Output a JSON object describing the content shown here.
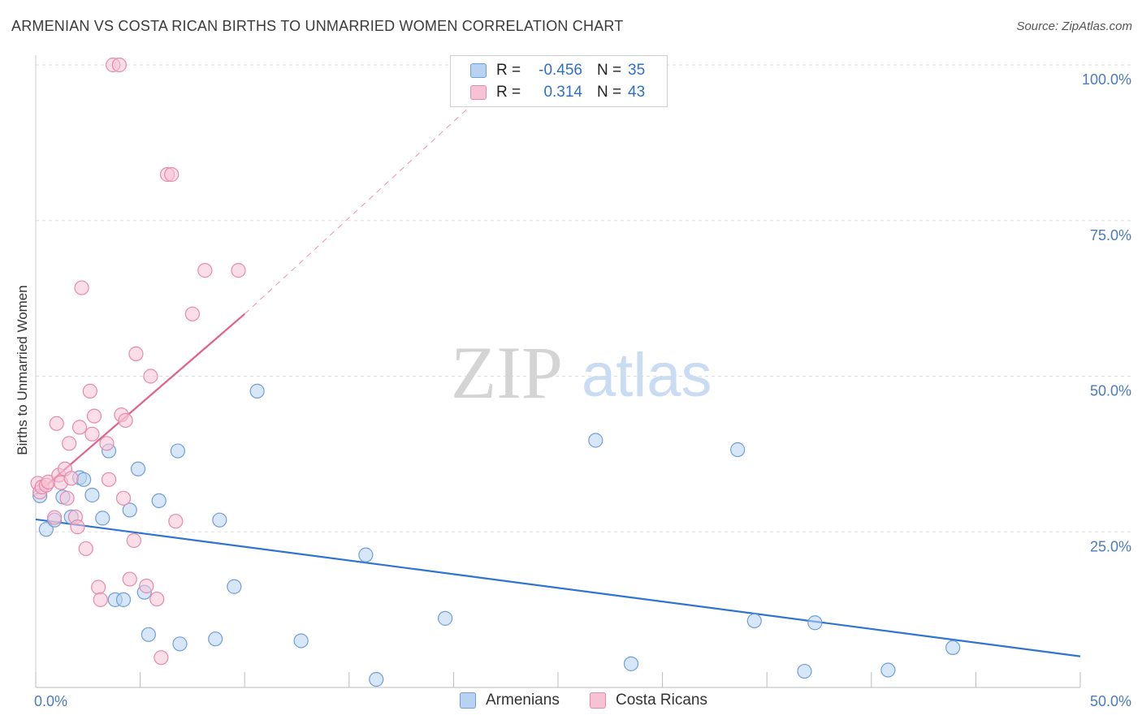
{
  "title": "ARMENIAN VS COSTA RICAN BIRTHS TO UNMARRIED WOMEN CORRELATION CHART",
  "source": "Source: ZipAtlas.com",
  "watermark": {
    "zip": "ZIP",
    "atlas": "atlas"
  },
  "colors": {
    "armenian_fill": "#b8d3f2",
    "armenian_stroke": "#6f9fd8",
    "armenian_line": "#2e74d0",
    "costa_fill": "#f7c3d4",
    "costa_stroke": "#e68aab",
    "costa_line": "#e2608e",
    "tick_text": "#4a7ac0",
    "grid": "#dddddd"
  },
  "legend": {
    "r_label": "R =",
    "n_label": "N =",
    "rows": [
      {
        "series": "Armenians",
        "r": "-0.456",
        "n": "35"
      },
      {
        "series": "Costa Ricans",
        "r": "0.314",
        "n": "43"
      }
    ]
  },
  "chart_data": {
    "type": "scatter",
    "title": "ARMENIAN VS COSTA RICAN BIRTHS TO UNMARRIED WOMEN CORRELATION CHART",
    "xlabel": "",
    "ylabel": "Births to Unmarried Women",
    "xlim": [
      0,
      50
    ],
    "ylim": [
      0,
      100
    ],
    "x_tick_labels": [
      "0.0%",
      "50.0%"
    ],
    "y_ticks": [
      25,
      50,
      75,
      100
    ],
    "y_tick_labels": [
      "25.0%",
      "50.0%",
      "75.0%",
      "100.0%"
    ],
    "grid": true,
    "legend_position": "top-center",
    "series": [
      {
        "name": "Armenians",
        "points": [
          [
            0.2,
            30.8
          ],
          [
            0.5,
            25.4
          ],
          [
            0.9,
            26.9
          ],
          [
            1.3,
            30.6
          ],
          [
            1.7,
            27.4
          ],
          [
            2.1,
            33.7
          ],
          [
            2.3,
            33.4
          ],
          [
            2.7,
            30.9
          ],
          [
            3.2,
            27.2
          ],
          [
            3.5,
            38.0
          ],
          [
            3.8,
            14.1
          ],
          [
            4.2,
            14.1
          ],
          [
            4.5,
            28.5
          ],
          [
            4.9,
            35.1
          ],
          [
            5.2,
            15.3
          ],
          [
            5.4,
            8.5
          ],
          [
            5.9,
            30.0
          ],
          [
            6.8,
            38.0
          ],
          [
            6.9,
            7.0
          ],
          [
            8.6,
            7.8
          ],
          [
            8.8,
            26.9
          ],
          [
            9.5,
            16.2
          ],
          [
            10.6,
            47.6
          ],
          [
            12.7,
            7.5
          ],
          [
            15.8,
            21.3
          ],
          [
            16.3,
            1.3
          ],
          [
            19.6,
            11.1
          ],
          [
            26.8,
            39.7
          ],
          [
            28.5,
            3.8
          ],
          [
            33.6,
            38.2
          ],
          [
            34.4,
            10.7
          ],
          [
            36.8,
            2.6
          ],
          [
            37.3,
            10.4
          ],
          [
            40.8,
            2.8
          ],
          [
            43.9,
            6.4
          ]
        ]
      },
      {
        "name": "Costa Ricans",
        "points": [
          [
            0.1,
            32.8
          ],
          [
            0.2,
            31.4
          ],
          [
            0.3,
            32.2
          ],
          [
            0.5,
            32.5
          ],
          [
            0.6,
            33.0
          ],
          [
            0.9,
            27.3
          ],
          [
            1.0,
            42.4
          ],
          [
            1.1,
            34.1
          ],
          [
            1.2,
            32.9
          ],
          [
            1.4,
            35.1
          ],
          [
            1.5,
            30.4
          ],
          [
            1.6,
            39.2
          ],
          [
            1.7,
            33.6
          ],
          [
            1.9,
            27.4
          ],
          [
            2.0,
            25.8
          ],
          [
            2.1,
            41.8
          ],
          [
            2.2,
            64.2
          ],
          [
            2.4,
            22.3
          ],
          [
            2.6,
            47.6
          ],
          [
            2.7,
            40.7
          ],
          [
            2.8,
            43.6
          ],
          [
            3.0,
            16.1
          ],
          [
            3.1,
            14.1
          ],
          [
            3.4,
            39.2
          ],
          [
            3.5,
            33.4
          ],
          [
            3.7,
            100.0
          ],
          [
            4.0,
            100.0
          ],
          [
            4.1,
            43.8
          ],
          [
            4.2,
            30.4
          ],
          [
            4.3,
            42.9
          ],
          [
            4.5,
            17.4
          ],
          [
            4.7,
            23.6
          ],
          [
            4.8,
            53.6
          ],
          [
            5.3,
            16.3
          ],
          [
            5.5,
            50.0
          ],
          [
            5.8,
            14.2
          ],
          [
            6.0,
            4.8
          ],
          [
            6.3,
            82.4
          ],
          [
            6.5,
            82.4
          ],
          [
            6.7,
            26.7
          ],
          [
            7.5,
            60.0
          ],
          [
            8.1,
            67.0
          ],
          [
            9.7,
            67.0
          ]
        ]
      }
    ],
    "trend_lines": [
      {
        "series": "Armenians",
        "x": [
          0,
          50
        ],
        "y": [
          27.0,
          5.0
        ],
        "style": "solid"
      },
      {
        "series": "Costa Ricans",
        "x": [
          0,
          10.0
        ],
        "y": [
          31.0,
          60.0
        ],
        "style": "solid"
      },
      {
        "series": "Costa Ricans",
        "x": [
          10.0,
          21.0
        ],
        "y": [
          60.0,
          94.0
        ],
        "style": "dashed"
      }
    ]
  }
}
